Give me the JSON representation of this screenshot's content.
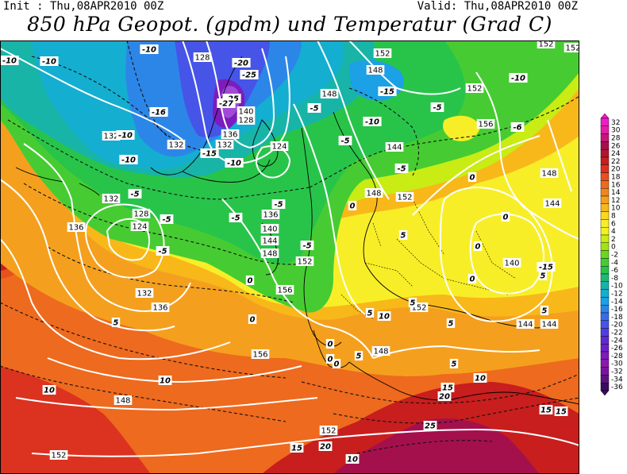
{
  "header": {
    "init": "Init : Thu,08APR2010 00Z",
    "valid": "Valid: Thu,08APR2010 00Z",
    "title": "850 hPa Geopot. (gpdm) und Temperatur (Grad C)"
  },
  "legend": {
    "levels": [
      "32",
      "30",
      "28",
      "26",
      "24",
      "22",
      "20",
      "18",
      "16",
      "14",
      "12",
      "10",
      "8",
      "6",
      "4",
      "2",
      "0",
      "-2",
      "-4",
      "-6",
      "-8",
      "-10",
      "-12",
      "-14",
      "-16",
      "-18",
      "-20",
      "-22",
      "-24",
      "-26",
      "-28",
      "-30",
      "-32",
      "-34",
      "-36"
    ],
    "colors": [
      "#f01cc8",
      "#e41ca8",
      "#c81478",
      "#a4104c",
      "#b4142c",
      "#c81e1e",
      "#dc3220",
      "#e8501e",
      "#ee6a1e",
      "#f2861e",
      "#f4a01e",
      "#f8b81a",
      "#fad81e",
      "#f8ee28",
      "#f0f41c",
      "#c8ec14",
      "#a0e414",
      "#6ad81e",
      "#46cc32",
      "#28c44a",
      "#1cba7a",
      "#18b4a8",
      "#14aed0",
      "#1ca0e6",
      "#2c86e8",
      "#3a6cea",
      "#4654e8",
      "#523ee0",
      "#5e2ad4",
      "#6c20c8",
      "#7c1cbc",
      "#8c18ae",
      "#7a14a0",
      "#5c1480",
      "#3c0c60"
    ]
  },
  "map": {
    "geopotential_labels": [
      {
        "text": "128"
      },
      {
        "text": "128"
      },
      {
        "text": "124"
      },
      {
        "text": "152"
      },
      {
        "text": "148"
      },
      {
        "text": "148"
      },
      {
        "text": "140"
      },
      {
        "text": "136"
      },
      {
        "text": "132"
      },
      {
        "text": "132"
      },
      {
        "text": "132"
      },
      {
        "text": "128"
      },
      {
        "text": "124"
      },
      {
        "text": "132"
      },
      {
        "text": "136"
      },
      {
        "text": "136"
      },
      {
        "text": "132"
      },
      {
        "text": "136"
      },
      {
        "text": "140"
      },
      {
        "text": "144"
      },
      {
        "text": "148"
      },
      {
        "text": "152"
      },
      {
        "text": "156"
      },
      {
        "text": "144"
      },
      {
        "text": "148"
      },
      {
        "text": "152"
      },
      {
        "text": "156"
      },
      {
        "text": "148"
      },
      {
        "text": "144"
      },
      {
        "text": "140"
      },
      {
        "text": "144"
      },
      {
        "text": "152"
      },
      {
        "text": "148"
      },
      {
        "text": "156"
      },
      {
        "text": "152"
      },
      {
        "text": "148"
      },
      {
        "text": "152"
      },
      {
        "text": "152"
      },
      {
        "text": "152"
      },
      {
        "text": "152"
      },
      {
        "text": "144"
      }
    ],
    "temperature_labels": [
      {
        "text": "-10"
      },
      {
        "text": "-10"
      },
      {
        "text": "-20"
      },
      {
        "text": "-25"
      },
      {
        "text": "-25"
      },
      {
        "text": "-27"
      },
      {
        "text": "-16"
      },
      {
        "text": "-10"
      },
      {
        "text": "-10"
      },
      {
        "text": "-5"
      },
      {
        "text": "-15"
      },
      {
        "text": "-10"
      },
      {
        "text": "-15"
      },
      {
        "text": "-10"
      },
      {
        "text": "-10"
      },
      {
        "text": "-5"
      },
      {
        "text": "-5"
      },
      {
        "text": "-5"
      },
      {
        "text": "-5"
      },
      {
        "text": "-5"
      },
      {
        "text": "-5"
      },
      {
        "text": "-5"
      },
      {
        "text": "-6"
      },
      {
        "text": "-10"
      },
      {
        "text": "-5"
      },
      {
        "text": "-5"
      },
      {
        "text": "0"
      },
      {
        "text": "0"
      },
      {
        "text": "0"
      },
      {
        "text": "0"
      },
      {
        "text": "0"
      },
      {
        "text": "0"
      },
      {
        "text": "0"
      },
      {
        "text": "0"
      },
      {
        "text": "0"
      },
      {
        "text": "5"
      },
      {
        "text": "5"
      },
      {
        "text": "5"
      },
      {
        "text": "5"
      },
      {
        "text": "5"
      },
      {
        "text": "5"
      },
      {
        "text": "5"
      },
      {
        "text": "5"
      },
      {
        "text": "10"
      },
      {
        "text": "10"
      },
      {
        "text": "10"
      },
      {
        "text": "10"
      },
      {
        "text": "15"
      },
      {
        "text": "15"
      },
      {
        "text": "15"
      },
      {
        "text": "20"
      },
      {
        "text": "20"
      },
      {
        "text": "25"
      },
      {
        "text": "15"
      },
      {
        "text": "15"
      },
      {
        "text": "10"
      },
      {
        "text": "5"
      },
      {
        "text": "0"
      },
      {
        "text": "-15"
      }
    ]
  }
}
